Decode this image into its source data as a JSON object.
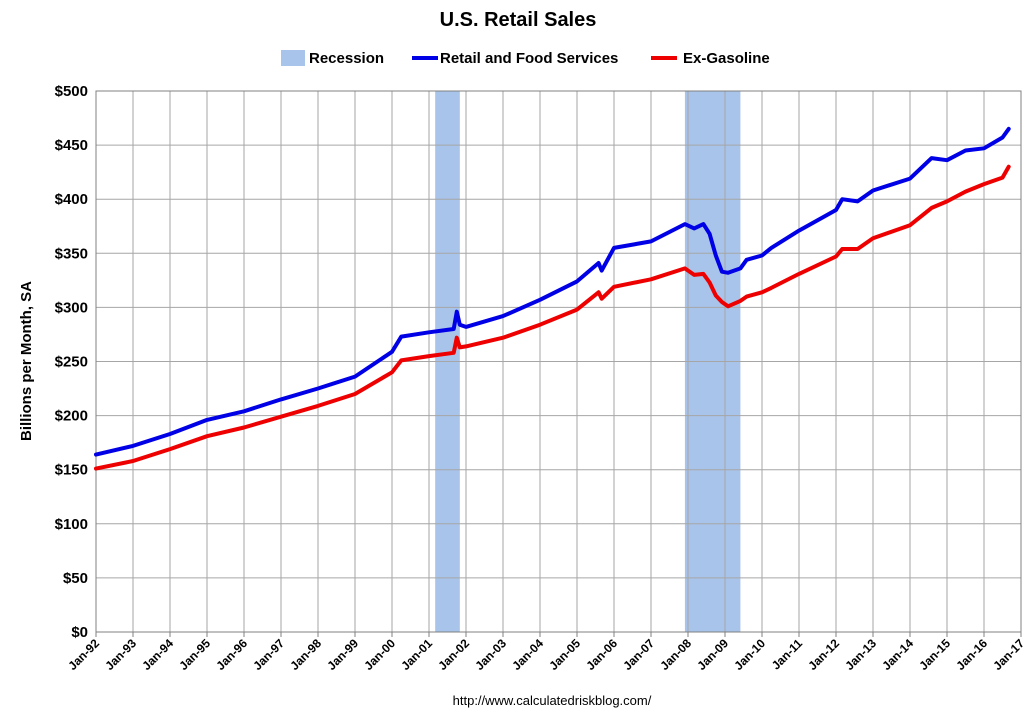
{
  "chart_data": {
    "type": "line",
    "title": "U.S. Retail Sales",
    "ylabel": "Billions per Month, SA",
    "xlabel": "",
    "source": "http://www.calculatedriskblog.com/",
    "ylim": [
      0,
      500
    ],
    "xlim": [
      "1992-01",
      "2017-01"
    ],
    "yticks": [
      0,
      50,
      100,
      150,
      200,
      250,
      300,
      350,
      400,
      450,
      500
    ],
    "ytick_labels": [
      "$0",
      "$50",
      "$100",
      "$150",
      "$200",
      "$250",
      "$300",
      "$350",
      "$400",
      "$450",
      "$500"
    ],
    "xtick_labels": [
      "Jan-92",
      "Jan-93",
      "Jan-94",
      "Jan-95",
      "Jan-96",
      "Jan-97",
      "Jan-98",
      "Jan-99",
      "Jan-00",
      "Jan-01",
      "Jan-02",
      "Jan-03",
      "Jan-04",
      "Jan-05",
      "Jan-06",
      "Jan-07",
      "Jan-08",
      "Jan-09",
      "Jan-10",
      "Jan-11",
      "Jan-12",
      "Jan-13",
      "Jan-14",
      "Jan-15",
      "Jan-16",
      "Jan-17"
    ],
    "grid": true,
    "legend_position": "top",
    "legend": [
      {
        "name": "Recession",
        "color": "#a9c4eb",
        "kind": "band"
      },
      {
        "name": "Retail and Food Services",
        "color": "#0000e6",
        "kind": "line"
      },
      {
        "name": "Ex-Gasoline",
        "color": "#ee0000",
        "kind": "line"
      }
    ],
    "recessions": [
      {
        "start": "2001-03",
        "end": "2001-11"
      },
      {
        "start": "2007-12",
        "end": "2009-06"
      }
    ],
    "series": [
      {
        "name": "Retail and Food Services",
        "color": "#0000e6",
        "points": [
          [
            "1992-01",
            164
          ],
          [
            "1993-01",
            172
          ],
          [
            "1994-01",
            183
          ],
          [
            "1995-01",
            196
          ],
          [
            "1996-01",
            204
          ],
          [
            "1997-01",
            215
          ],
          [
            "1998-01",
            225
          ],
          [
            "1999-01",
            236
          ],
          [
            "2000-01",
            259
          ],
          [
            "2000-04",
            273
          ],
          [
            "2001-01",
            277
          ],
          [
            "2001-09",
            280
          ],
          [
            "2001-10",
            296
          ],
          [
            "2001-11",
            284
          ],
          [
            "2002-01",
            282
          ],
          [
            "2003-01",
            292
          ],
          [
            "2004-01",
            307
          ],
          [
            "2005-01",
            324
          ],
          [
            "2005-08",
            341
          ],
          [
            "2005-09",
            334
          ],
          [
            "2006-01",
            355
          ],
          [
            "2007-01",
            361
          ],
          [
            "2007-12",
            377
          ],
          [
            "2008-03",
            373
          ],
          [
            "2008-06",
            377
          ],
          [
            "2008-08",
            368
          ],
          [
            "2008-10",
            348
          ],
          [
            "2008-12",
            333
          ],
          [
            "2009-02",
            332
          ],
          [
            "2009-06",
            336
          ],
          [
            "2009-08",
            344
          ],
          [
            "2010-01",
            348
          ],
          [
            "2010-04",
            355
          ],
          [
            "2011-01",
            371
          ],
          [
            "2012-01",
            390
          ],
          [
            "2012-03",
            400
          ],
          [
            "2012-08",
            398
          ],
          [
            "2013-01",
            408
          ],
          [
            "2014-01",
            419
          ],
          [
            "2014-08",
            438
          ],
          [
            "2015-01",
            436
          ],
          [
            "2015-07",
            445
          ],
          [
            "2016-01",
            447
          ],
          [
            "2016-07",
            457
          ],
          [
            "2016-09",
            465
          ]
        ]
      },
      {
        "name": "Ex-Gasoline",
        "color": "#ee0000",
        "points": [
          [
            "1992-01",
            151
          ],
          [
            "1993-01",
            158
          ],
          [
            "1994-01",
            169
          ],
          [
            "1995-01",
            181
          ],
          [
            "1996-01",
            189
          ],
          [
            "1997-01",
            199
          ],
          [
            "1998-01",
            209
          ],
          [
            "1999-01",
            220
          ],
          [
            "2000-01",
            240
          ],
          [
            "2000-04",
            251
          ],
          [
            "2001-01",
            255
          ],
          [
            "2001-09",
            258
          ],
          [
            "2001-10",
            272
          ],
          [
            "2001-11",
            263
          ],
          [
            "2002-01",
            264
          ],
          [
            "2003-01",
            272
          ],
          [
            "2004-01",
            284
          ],
          [
            "2005-01",
            298
          ],
          [
            "2005-08",
            314
          ],
          [
            "2005-09",
            308
          ],
          [
            "2006-01",
            319
          ],
          [
            "2007-01",
            326
          ],
          [
            "2007-12",
            336
          ],
          [
            "2008-03",
            330
          ],
          [
            "2008-06",
            331
          ],
          [
            "2008-08",
            323
          ],
          [
            "2008-10",
            311
          ],
          [
            "2008-12",
            305
          ],
          [
            "2009-02",
            301
          ],
          [
            "2009-06",
            306
          ],
          [
            "2009-08",
            310
          ],
          [
            "2010-01",
            314
          ],
          [
            "2010-04",
            318
          ],
          [
            "2011-01",
            331
          ],
          [
            "2012-01",
            347
          ],
          [
            "2012-03",
            354
          ],
          [
            "2012-08",
            354
          ],
          [
            "2013-01",
            364
          ],
          [
            "2014-01",
            376
          ],
          [
            "2014-08",
            392
          ],
          [
            "2015-01",
            398
          ],
          [
            "2015-07",
            407
          ],
          [
            "2016-01",
            414
          ],
          [
            "2016-07",
            420
          ],
          [
            "2016-09",
            430
          ]
        ]
      }
    ]
  }
}
